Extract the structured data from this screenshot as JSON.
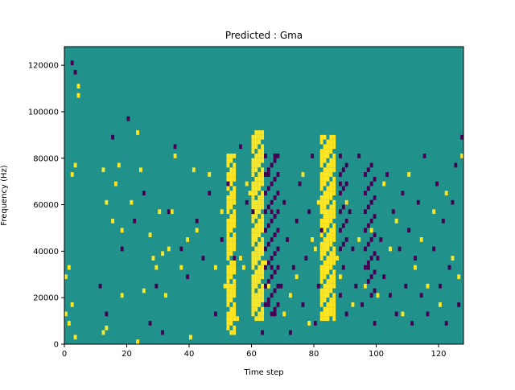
{
  "chart_data": {
    "type": "heatmap",
    "title": "Predicted : Gma",
    "xlabel": "Time step",
    "ylabel": "Frequency (Hz)",
    "xlim": [
      0,
      128
    ],
    "ylim": [
      0,
      128000
    ],
    "xticks": [
      0,
      20,
      40,
      60,
      80,
      100,
      120
    ],
    "xtick_labels": [
      "0",
      "20",
      "40",
      "60",
      "80",
      "100",
      "120"
    ],
    "yticks": [
      0,
      20000,
      40000,
      60000,
      80000,
      100000,
      120000
    ],
    "ytick_labels": [
      "0",
      "20000",
      "40000",
      "60000",
      "80000",
      "100000",
      "120000"
    ],
    "grid": false,
    "colormap": "viridis",
    "colors": {
      "background_class": "#21918c",
      "high_class": "#fde725",
      "low_class": "#440154"
    },
    "bin_height_hz": 2000,
    "note_cells_description": "sparse cells; dense yellow bands near time steps 52-64 and 82-87; dark purple bands near 64-68 and 88-100",
    "cells_high": [
      [
        0,
        6
      ],
      [
        0,
        14
      ],
      [
        1,
        4
      ],
      [
        1,
        16
      ],
      [
        2,
        8
      ],
      [
        2,
        36
      ],
      [
        3,
        1
      ],
      [
        3,
        38
      ],
      [
        4,
        53
      ],
      [
        4,
        55
      ],
      [
        12,
        2
      ],
      [
        12,
        37
      ],
      [
        13,
        3
      ],
      [
        13,
        30
      ],
      [
        15,
        26
      ],
      [
        16,
        34
      ],
      [
        17,
        38
      ],
      [
        18,
        10
      ],
      [
        18,
        24
      ],
      [
        21,
        30
      ],
      [
        23,
        0
      ],
      [
        23,
        45
      ],
      [
        24,
        37
      ],
      [
        25,
        11
      ],
      [
        27,
        23
      ],
      [
        28,
        18
      ],
      [
        29,
        16
      ],
      [
        30,
        28
      ],
      [
        31,
        19
      ],
      [
        32,
        10
      ],
      [
        33,
        20
      ],
      [
        34,
        28
      ],
      [
        35,
        40
      ],
      [
        37,
        16
      ],
      [
        39,
        22
      ],
      [
        40,
        1
      ],
      [
        41,
        37
      ],
      [
        42,
        24
      ],
      [
        46,
        36
      ],
      [
        48,
        16
      ],
      [
        50,
        28
      ],
      [
        51,
        12
      ],
      [
        52,
        12
      ],
      [
        52,
        22
      ],
      [
        53,
        6
      ],
      [
        53,
        26
      ],
      [
        54,
        33
      ],
      [
        55,
        5
      ],
      [
        56,
        18
      ],
      [
        57,
        16
      ],
      [
        58,
        34
      ],
      [
        59,
        32
      ],
      [
        60,
        10
      ],
      [
        60,
        22
      ],
      [
        60,
        30
      ],
      [
        61,
        12
      ],
      [
        61,
        40
      ],
      [
        62,
        25
      ],
      [
        63,
        20
      ],
      [
        64,
        17
      ],
      [
        65,
        12
      ],
      [
        66,
        28
      ],
      [
        70,
        6
      ],
      [
        72,
        10
      ],
      [
        74,
        14
      ],
      [
        76,
        36
      ],
      [
        78,
        4
      ],
      [
        79,
        22
      ],
      [
        80,
        20
      ],
      [
        81,
        30
      ],
      [
        82,
        16
      ],
      [
        82,
        40
      ],
      [
        83,
        28
      ],
      [
        84,
        12
      ],
      [
        84,
        20
      ],
      [
        85,
        36
      ],
      [
        86,
        6
      ],
      [
        86,
        24
      ],
      [
        87,
        18
      ],
      [
        88,
        14
      ],
      [
        90,
        30
      ],
      [
        92,
        8
      ],
      [
        94,
        22
      ],
      [
        96,
        12
      ],
      [
        98,
        24
      ],
      [
        100,
        10
      ],
      [
        102,
        34
      ],
      [
        104,
        20
      ],
      [
        106,
        26
      ],
      [
        108,
        6
      ],
      [
        110,
        36
      ],
      [
        112,
        16
      ],
      [
        114,
        22
      ],
      [
        116,
        12
      ],
      [
        118,
        28
      ],
      [
        120,
        8
      ],
      [
        122,
        32
      ],
      [
        124,
        18
      ],
      [
        126,
        14
      ],
      [
        127,
        40
      ]
    ],
    "cells_low": [
      [
        2,
        60
      ],
      [
        3,
        58
      ],
      [
        11,
        12
      ],
      [
        13,
        6
      ],
      [
        15,
        44
      ],
      [
        18,
        20
      ],
      [
        20,
        48
      ],
      [
        22,
        26
      ],
      [
        25,
        32
      ],
      [
        27,
        4
      ],
      [
        29,
        12
      ],
      [
        31,
        2
      ],
      [
        33,
        28
      ],
      [
        35,
        42
      ],
      [
        37,
        20
      ],
      [
        39,
        14
      ],
      [
        42,
        26
      ],
      [
        44,
        18
      ],
      [
        46,
        32
      ],
      [
        48,
        6
      ],
      [
        50,
        22
      ],
      [
        52,
        34
      ],
      [
        54,
        18
      ],
      [
        56,
        42
      ],
      [
        58,
        30
      ],
      [
        60,
        28
      ],
      [
        63,
        2
      ],
      [
        64,
        12
      ],
      [
        64,
        24
      ],
      [
        65,
        8
      ],
      [
        65,
        36
      ],
      [
        66,
        16
      ],
      [
        66,
        28
      ],
      [
        67,
        6
      ],
      [
        67,
        40
      ],
      [
        68,
        20
      ],
      [
        69,
        12
      ],
      [
        70,
        30
      ],
      [
        71,
        22
      ],
      [
        72,
        2
      ],
      [
        73,
        16
      ],
      [
        74,
        26
      ],
      [
        75,
        34
      ],
      [
        76,
        8
      ],
      [
        77,
        18
      ],
      [
        78,
        28
      ],
      [
        79,
        40
      ],
      [
        80,
        4
      ],
      [
        81,
        12
      ],
      [
        82,
        24
      ],
      [
        88,
        10
      ],
      [
        88,
        34
      ],
      [
        89,
        16
      ],
      [
        90,
        6
      ],
      [
        91,
        28
      ],
      [
        92,
        20
      ],
      [
        93,
        12
      ],
      [
        94,
        40
      ],
      [
        95,
        8
      ],
      [
        96,
        24
      ],
      [
        97,
        16
      ],
      [
        98,
        30
      ],
      [
        99,
        4
      ],
      [
        100,
        18
      ],
      [
        101,
        22
      ],
      [
        102,
        14
      ],
      [
        103,
        36
      ],
      [
        104,
        10
      ],
      [
        105,
        28
      ],
      [
        106,
        6
      ],
      [
        107,
        20
      ],
      [
        108,
        32
      ],
      [
        109,
        12
      ],
      [
        110,
        24
      ],
      [
        111,
        4
      ],
      [
        112,
        18
      ],
      [
        113,
        30
      ],
      [
        114,
        10
      ],
      [
        115,
        40
      ],
      [
        116,
        6
      ],
      [
        118,
        20
      ],
      [
        119,
        34
      ],
      [
        120,
        12
      ],
      [
        121,
        26
      ],
      [
        122,
        4
      ],
      [
        123,
        16
      ],
      [
        124,
        30
      ],
      [
        125,
        38
      ],
      [
        126,
        8
      ],
      [
        127,
        44
      ]
    ],
    "bands_high": [
      {
        "x_start": 52,
        "x_end": 54,
        "y_start": 2,
        "y_end": 40
      },
      {
        "x_start": 60,
        "x_end": 63,
        "y_start": 5,
        "y_end": 45
      },
      {
        "x_start": 82,
        "x_end": 86,
        "y_start": 5,
        "y_end": 44
      }
    ],
    "bands_low": [
      {
        "x_start": 64,
        "x_end": 68,
        "y_start": 6,
        "y_end": 40
      },
      {
        "x_start": 88,
        "x_end": 90,
        "y_start": 20,
        "y_end": 40
      },
      {
        "x_start": 96,
        "x_end": 99,
        "y_start": 10,
        "y_end": 38
      }
    ]
  }
}
